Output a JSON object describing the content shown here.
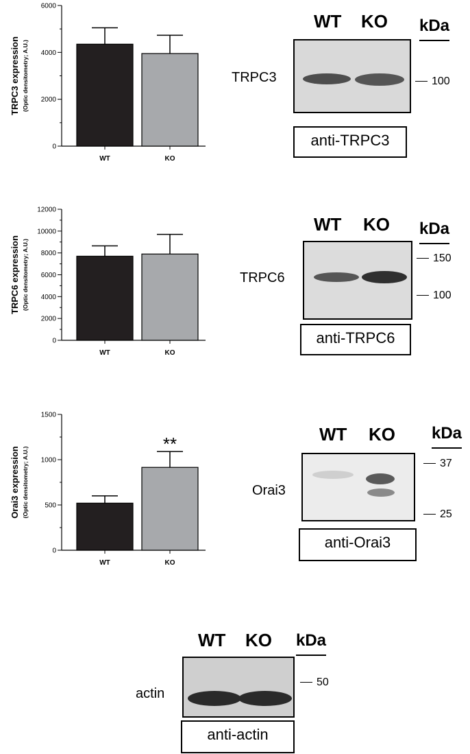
{
  "chart_data": [
    {
      "type": "bar",
      "categories": [
        "WT",
        "KO"
      ],
      "values": [
        4350,
        3950
      ],
      "errors": [
        700,
        780
      ],
      "ylabel": "TRPC3 expression",
      "ylabel_sub": "(Optic densitometry; A.U.)",
      "ylim": [
        0,
        6000
      ],
      "yticks": [
        "0",
        "2000",
        "4000",
        "6000"
      ],
      "colors": [
        "#231f20",
        "#a7a9ac"
      ],
      "annotations": []
    },
    {
      "type": "bar",
      "categories": [
        "WT",
        "KO"
      ],
      "values": [
        7700,
        7900
      ],
      "errors": [
        950,
        1800
      ],
      "ylabel": "TRPC6 expression",
      "ylabel_sub": "(Optic densitometry; A.U.)",
      "ylim": [
        0,
        12000
      ],
      "yticks": [
        "0",
        "2000",
        "4000",
        "6000",
        "8000",
        "10000",
        "12000"
      ],
      "colors": [
        "#231f20",
        "#a7a9ac"
      ],
      "annotations": []
    },
    {
      "type": "bar",
      "categories": [
        "WT",
        "KO"
      ],
      "values": [
        520,
        915
      ],
      "errors": [
        80,
        175
      ],
      "ylabel": "Orai3 expression",
      "ylabel_sub": "(Optic densitometry; A.U.)",
      "ylim": [
        0,
        1500
      ],
      "yticks": [
        "0",
        "500",
        "1000",
        "1500"
      ],
      "colors": [
        "#231f20",
        "#a7a9ac"
      ],
      "annotations": [
        {
          "category": "KO",
          "text": "**"
        }
      ]
    }
  ],
  "blots": [
    {
      "headers": [
        "WT",
        "KO"
      ],
      "kda": "kDa",
      "protein": "TRPC3",
      "antibody": "anti-TRPC3",
      "markers": [
        "100"
      ]
    },
    {
      "headers": [
        "WT",
        "KO"
      ],
      "kda": "kDa",
      "protein": "TRPC6",
      "antibody": "anti-TRPC6",
      "markers": [
        "150",
        "100"
      ]
    },
    {
      "headers": [
        "WT",
        "KO"
      ],
      "kda": "kDa",
      "protein": "Orai3",
      "antibody": "anti-Orai3",
      "markers": [
        "37",
        "25"
      ]
    },
    {
      "headers": [
        "WT",
        "KO"
      ],
      "kda": "kDa",
      "protein": "actin",
      "antibody": "anti-actin",
      "markers": [
        "50"
      ]
    }
  ]
}
